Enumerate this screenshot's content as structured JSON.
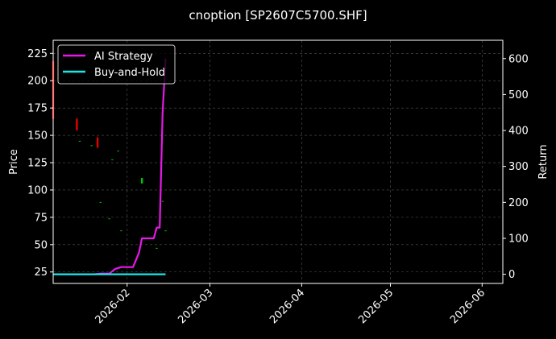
{
  "chart_data": {
    "type": "line",
    "title": "cnoption [SP2607C5700.SHF]",
    "xlabel": "",
    "ylabel": "Price",
    "y2label": "Return",
    "x_axis": {
      "range": [
        "2026-01-07",
        "2026-06-08"
      ],
      "ticks": [
        "2026-02",
        "2026-03",
        "2026-04",
        "2026-05",
        "2026-06"
      ]
    },
    "y_axis": {
      "range": [
        14.5,
        237
      ],
      "ticks": [
        25,
        50,
        75,
        100,
        125,
        150,
        175,
        200,
        225
      ]
    },
    "y2_axis": {
      "range": [
        -25.5,
        651
      ],
      "ticks": [
        0,
        100,
        200,
        300,
        400,
        500,
        600
      ]
    },
    "grid": true,
    "legend": {
      "position": "top-left"
    },
    "colors": {
      "background": "#000000",
      "up": "#00c800",
      "down": "#e60000",
      "ai": "#e619e6",
      "bh": "#19e6e6",
      "grid": "#555555",
      "frame": "#ffffff"
    },
    "series": [
      {
        "name": "AI Strategy",
        "axis": "right",
        "x": [
          "2026-01-07",
          "2026-01-20",
          "2026-01-21",
          "2026-01-23",
          "2026-01-26",
          "2026-01-28",
          "2026-01-30",
          "2026-02-02",
          "2026-02-03",
          "2026-02-04",
          "2026-02-05",
          "2026-02-06",
          "2026-02-09",
          "2026-02-10",
          "2026-02-11",
          "2026-02-12",
          "2026-02-13",
          "2026-02-14"
        ],
        "values": [
          0,
          0,
          0,
          2,
          2,
          15,
          20,
          20,
          20,
          40,
          60,
          100,
          100,
          100,
          130,
          130,
          450,
          600
        ]
      },
      {
        "name": "Buy-and-Hold",
        "axis": "right",
        "x": [
          "2026-01-07",
          "2026-02-14"
        ],
        "values": [
          0,
          0
        ]
      }
    ],
    "candles": [
      {
        "date": "2026-01-07",
        "open": 218,
        "close": 165,
        "high": 220,
        "low": 163
      },
      {
        "date": "2026-01-15",
        "open": 165,
        "close": 155,
        "high": 166,
        "low": 154
      },
      {
        "date": "2026-01-16",
        "open": 145,
        "close": 145,
        "high": 145,
        "low": 145
      },
      {
        "date": "2026-01-20",
        "open": 141,
        "close": 141,
        "high": 141,
        "low": 141
      },
      {
        "date": "2026-01-22",
        "open": 148,
        "close": 139,
        "high": 149,
        "low": 138
      },
      {
        "date": "2026-01-23",
        "open": 89,
        "close": 89,
        "high": 89,
        "low": 89
      },
      {
        "date": "2026-01-26",
        "open": 74,
        "close": 74,
        "high": 74,
        "low": 74
      },
      {
        "date": "2026-01-27",
        "open": 128,
        "close": 128,
        "high": 128,
        "low": 128
      },
      {
        "date": "2026-01-29",
        "open": 136,
        "close": 136,
        "high": 136,
        "low": 136
      },
      {
        "date": "2026-01-30",
        "open": 63,
        "close": 63,
        "high": 63,
        "low": 63
      },
      {
        "date": "2026-02-06",
        "open": 106,
        "close": 111,
        "high": 111,
        "low": 106
      },
      {
        "date": "2026-02-11",
        "open": 47,
        "close": 47,
        "high": 47,
        "low": 47
      },
      {
        "date": "2026-02-13",
        "open": 90,
        "close": 90,
        "high": 90,
        "low": 90
      },
      {
        "date": "2026-02-14",
        "open": 63,
        "close": 63,
        "high": 63,
        "low": 63
      }
    ]
  }
}
